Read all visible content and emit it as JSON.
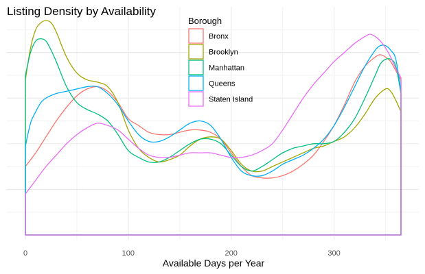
{
  "chart_data": {
    "type": "area",
    "title": "Listing Density by Availability",
    "xlabel": "Available Days per Year",
    "ylabel": "",
    "xlim": [
      0,
      365
    ],
    "ylim": [
      0,
      0.0094
    ],
    "x_ticks": [
      0,
      100,
      200,
      300
    ],
    "y_gridlines": [
      0.001,
      0.002,
      0.003,
      0.004,
      0.005,
      0.006,
      0.007,
      0.008,
      0.009
    ],
    "grid": true,
    "legend": {
      "title": "Borough",
      "placement": "top-center"
    },
    "series": [
      {
        "name": "Bronx",
        "color": "#F8766D",
        "x": [
          0,
          10,
          20,
          30,
          40,
          50,
          60,
          70,
          80,
          90,
          100,
          110,
          120,
          130,
          140,
          150,
          160,
          170,
          180,
          190,
          200,
          210,
          220,
          230,
          240,
          250,
          260,
          270,
          280,
          290,
          300,
          310,
          320,
          330,
          340,
          345,
          350,
          355,
          360,
          365
        ],
        "y": [
          0.003,
          0.0036,
          0.0043,
          0.005,
          0.0056,
          0.0061,
          0.0064,
          0.0065,
          0.0063,
          0.0058,
          0.0051,
          0.0048,
          0.0045,
          0.0044,
          0.0044,
          0.0045,
          0.0046,
          0.0046,
          0.0045,
          0.0042,
          0.0036,
          0.003,
          0.0026,
          0.0025,
          0.0025,
          0.0026,
          0.0028,
          0.0031,
          0.0035,
          0.0041,
          0.0048,
          0.0057,
          0.0067,
          0.0074,
          0.0078,
          0.0079,
          0.0078,
          0.0076,
          0.0072,
          0.0068
        ]
      },
      {
        "name": "Brooklyn",
        "color": "#A3A500",
        "x": [
          0,
          5,
          10,
          15,
          20,
          25,
          30,
          40,
          50,
          60,
          70,
          80,
          90,
          100,
          110,
          120,
          130,
          140,
          150,
          160,
          170,
          180,
          190,
          200,
          210,
          220,
          230,
          240,
          250,
          260,
          270,
          280,
          290,
          300,
          310,
          320,
          330,
          340,
          350,
          355,
          360,
          365
        ],
        "y": [
          0.0068,
          0.0082,
          0.009,
          0.0093,
          0.0094,
          0.0093,
          0.0089,
          0.0078,
          0.0071,
          0.0068,
          0.0067,
          0.0065,
          0.0058,
          0.0046,
          0.0038,
          0.0034,
          0.0032,
          0.0033,
          0.0035,
          0.0039,
          0.0042,
          0.0043,
          0.0042,
          0.0037,
          0.0031,
          0.0028,
          0.0028,
          0.003,
          0.0032,
          0.0034,
          0.0036,
          0.0038,
          0.0039,
          0.0041,
          0.0043,
          0.0047,
          0.0053,
          0.006,
          0.0064,
          0.0063,
          0.0059,
          0.0054
        ]
      },
      {
        "name": "Manhattan",
        "color": "#00BF7D",
        "x": [
          0,
          5,
          10,
          15,
          20,
          25,
          30,
          40,
          50,
          60,
          70,
          80,
          90,
          100,
          110,
          120,
          130,
          140,
          150,
          160,
          170,
          180,
          190,
          200,
          210,
          220,
          230,
          240,
          250,
          260,
          270,
          280,
          290,
          300,
          310,
          320,
          330,
          340,
          345,
          350,
          355,
          360,
          365
        ],
        "y": [
          0.007,
          0.008,
          0.0085,
          0.0086,
          0.0085,
          0.0081,
          0.0076,
          0.0065,
          0.0058,
          0.0055,
          0.0053,
          0.005,
          0.0044,
          0.0037,
          0.0034,
          0.0032,
          0.0032,
          0.0034,
          0.0037,
          0.004,
          0.0042,
          0.0042,
          0.004,
          0.0035,
          0.003,
          0.0028,
          0.003,
          0.0033,
          0.0036,
          0.0038,
          0.0039,
          0.004,
          0.004,
          0.0041,
          0.0045,
          0.0051,
          0.006,
          0.007,
          0.0075,
          0.0077,
          0.0077,
          0.0074,
          0.0062
        ]
      },
      {
        "name": "Queens",
        "color": "#00B0F6",
        "x": [
          0,
          5,
          10,
          15,
          20,
          30,
          40,
          50,
          60,
          70,
          80,
          90,
          100,
          110,
          120,
          130,
          140,
          150,
          160,
          170,
          180,
          190,
          200,
          210,
          220,
          230,
          240,
          250,
          260,
          270,
          280,
          290,
          300,
          310,
          320,
          330,
          340,
          345,
          350,
          355,
          360,
          365
        ],
        "y": [
          0.0039,
          0.0049,
          0.0054,
          0.0058,
          0.006,
          0.0062,
          0.0063,
          0.0064,
          0.0065,
          0.0065,
          0.0062,
          0.0057,
          0.005,
          0.0044,
          0.0041,
          0.0041,
          0.0043,
          0.0046,
          0.0049,
          0.005,
          0.0048,
          0.0042,
          0.0034,
          0.0028,
          0.0026,
          0.0026,
          0.0028,
          0.0031,
          0.0033,
          0.0035,
          0.0038,
          0.0042,
          0.0048,
          0.0056,
          0.0065,
          0.0074,
          0.0081,
          0.0083,
          0.0083,
          0.0081,
          0.0077,
          0.0063
        ]
      },
      {
        "name": "Staten Island",
        "color": "#E76BF3",
        "x": [
          0,
          10,
          20,
          30,
          40,
          50,
          60,
          70,
          80,
          90,
          100,
          110,
          120,
          130,
          140,
          150,
          160,
          170,
          180,
          190,
          200,
          210,
          220,
          230,
          240,
          250,
          260,
          270,
          280,
          290,
          300,
          310,
          320,
          330,
          335,
          340,
          345,
          350,
          355,
          360,
          365
        ],
        "y": [
          0.0018,
          0.0024,
          0.003,
          0.0035,
          0.004,
          0.0044,
          0.0047,
          0.0049,
          0.0048,
          0.0046,
          0.0042,
          0.0038,
          0.0035,
          0.0034,
          0.0034,
          0.0035,
          0.0036,
          0.0036,
          0.0036,
          0.0035,
          0.0034,
          0.0034,
          0.0035,
          0.0037,
          0.004,
          0.0046,
          0.0053,
          0.006,
          0.0066,
          0.0071,
          0.0076,
          0.008,
          0.0084,
          0.0087,
          0.0088,
          0.0087,
          0.0085,
          0.0082,
          0.0078,
          0.0073,
          0.0069
        ]
      }
    ]
  }
}
